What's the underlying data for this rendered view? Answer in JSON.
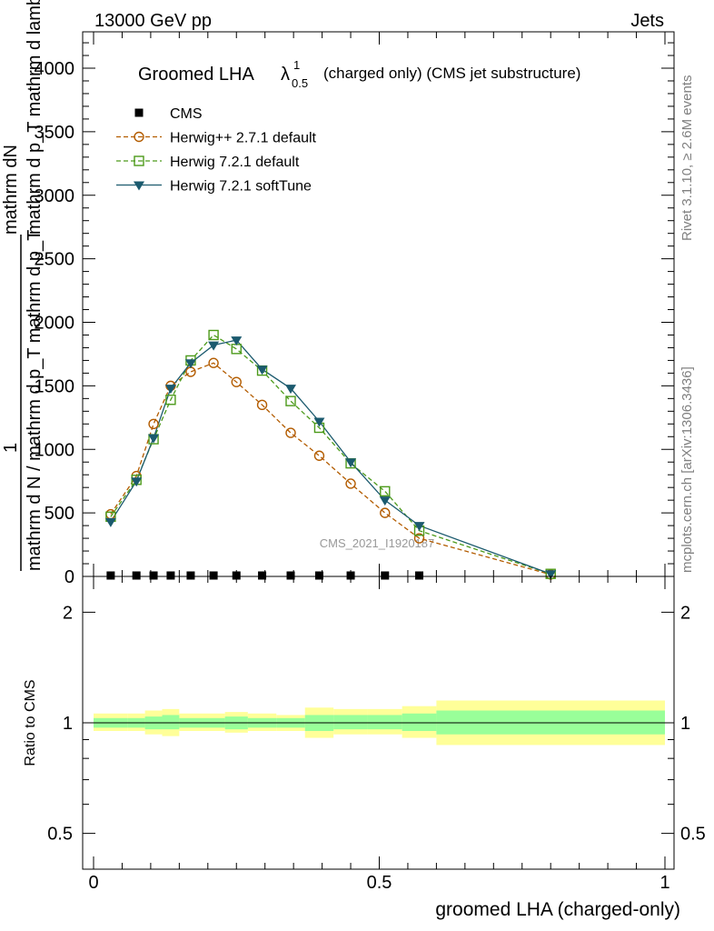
{
  "header": {
    "left": "13000 GeV pp",
    "right": "Jets"
  },
  "side_texts": {
    "rivet": "Rivet 3.1.10, ≥ 2.6M events",
    "mcplots": "mcplots.cern.ch [arXiv:1306.3436]"
  },
  "watermark": "CMS_2021_I1920187",
  "chart_data": [
    {
      "type": "line",
      "title": "Groomed LHA λ¹₀.₅ (charged only) (CMS jet substructure)",
      "title_main": "Groomed LHA",
      "title_lambda": "λ",
      "title_sup": "1",
      "title_sub": "0.5",
      "title_rest": "(charged only) (CMS jet substructure)",
      "ylabel_top": "mathrm dN",
      "ylabel_top2": "mathrm d p_T mathrm d lambda",
      "ylabel_mid": "1",
      "ylabel_bottom": "mathrm d N / mathrm d p_T mathrm d p_T",
      "xlim": [
        -0.02,
        1.02
      ],
      "ylim": [
        0,
        4300
      ],
      "yticks": [
        0,
        500,
        1000,
        1500,
        2000,
        2500,
        3000,
        3500,
        4000
      ],
      "ytick_labels": [
        "0",
        "500",
        "1000",
        "1500",
        "2000",
        "2500",
        "3000",
        "3500",
        "4000"
      ],
      "legend_position": "top-left",
      "series": [
        {
          "name": "CMS",
          "color": "#000000",
          "marker": "square-filled",
          "x": [
            0.03,
            0.075,
            0.105,
            0.135,
            0.17,
            0.21,
            0.25,
            0.295,
            0.345,
            0.395,
            0.45,
            0.51,
            0.57
          ],
          "y": [
            0,
            0,
            0,
            0,
            0,
            0,
            0,
            0,
            0,
            0,
            0,
            0,
            0
          ]
        },
        {
          "name": "Herwig++ 2.7.1 default",
          "color": "#b35c00",
          "marker": "circle-open",
          "dash": "dashed",
          "x": [
            0.03,
            0.075,
            0.105,
            0.135,
            0.17,
            0.21,
            0.25,
            0.295,
            0.345,
            0.395,
            0.45,
            0.51,
            0.57,
            0.8
          ],
          "y": [
            490,
            790,
            1200,
            1500,
            1610,
            1680,
            1530,
            1350,
            1130,
            950,
            730,
            500,
            300,
            15
          ]
        },
        {
          "name": "Herwig 7.2.1 default",
          "color": "#4c9a1a",
          "marker": "square-open",
          "dash": "dashed",
          "x": [
            0.03,
            0.075,
            0.105,
            0.135,
            0.17,
            0.21,
            0.25,
            0.295,
            0.345,
            0.395,
            0.45,
            0.51,
            0.57,
            0.8
          ],
          "y": [
            470,
            760,
            1080,
            1390,
            1700,
            1900,
            1790,
            1620,
            1380,
            1170,
            890,
            670,
            360,
            20
          ]
        },
        {
          "name": "Herwig 7.2.1 softTune",
          "color": "#1b5a6e",
          "marker": "triangle-down-filled",
          "dash": "solid",
          "x": [
            0.03,
            0.075,
            0.105,
            0.135,
            0.17,
            0.21,
            0.25,
            0.295,
            0.345,
            0.395,
            0.45,
            0.51,
            0.57,
            0.8
          ],
          "y": [
            430,
            750,
            1090,
            1480,
            1680,
            1820,
            1860,
            1630,
            1480,
            1220,
            900,
            600,
            400,
            20
          ]
        }
      ]
    },
    {
      "type": "area",
      "title": "",
      "ylabel": "Ratio to CMS",
      "xlabel": "groomed LHA (charged-only)",
      "xlim": [
        -0.02,
        1.02
      ],
      "ylim": [
        0.42,
        2.45
      ],
      "scale": "log",
      "xticks": [
        0,
        0.5,
        1
      ],
      "xtick_labels": [
        "0",
        "0.5",
        "1"
      ],
      "yticks": [
        0.5,
        1,
        2
      ],
      "ytick_labels": [
        "0.5",
        "1",
        "2"
      ],
      "bands": {
        "edges": [
          0.0,
          0.06,
          0.09,
          0.12,
          0.15,
          0.19,
          0.23,
          0.27,
          0.32,
          0.37,
          0.42,
          0.48,
          0.54,
          0.6,
          1.0
        ],
        "outer_color": "#ffff99",
        "inner_color": "#99ff99",
        "outer_up": [
          1.06,
          1.06,
          1.08,
          1.09,
          1.06,
          1.06,
          1.07,
          1.06,
          1.05,
          1.1,
          1.09,
          1.09,
          1.11,
          1.15
        ],
        "outer_down": [
          0.95,
          0.95,
          0.93,
          0.92,
          0.95,
          0.95,
          0.94,
          0.95,
          0.95,
          0.91,
          0.93,
          0.93,
          0.91,
          0.87
        ],
        "inner_up": [
          1.03,
          1.03,
          1.04,
          1.05,
          1.03,
          1.03,
          1.04,
          1.03,
          1.03,
          1.05,
          1.05,
          1.05,
          1.06,
          1.08
        ],
        "inner_down": [
          0.97,
          0.97,
          0.96,
          0.96,
          0.97,
          0.97,
          0.96,
          0.97,
          0.97,
          0.95,
          0.96,
          0.96,
          0.95,
          0.93
        ]
      },
      "reference": 1
    }
  ]
}
